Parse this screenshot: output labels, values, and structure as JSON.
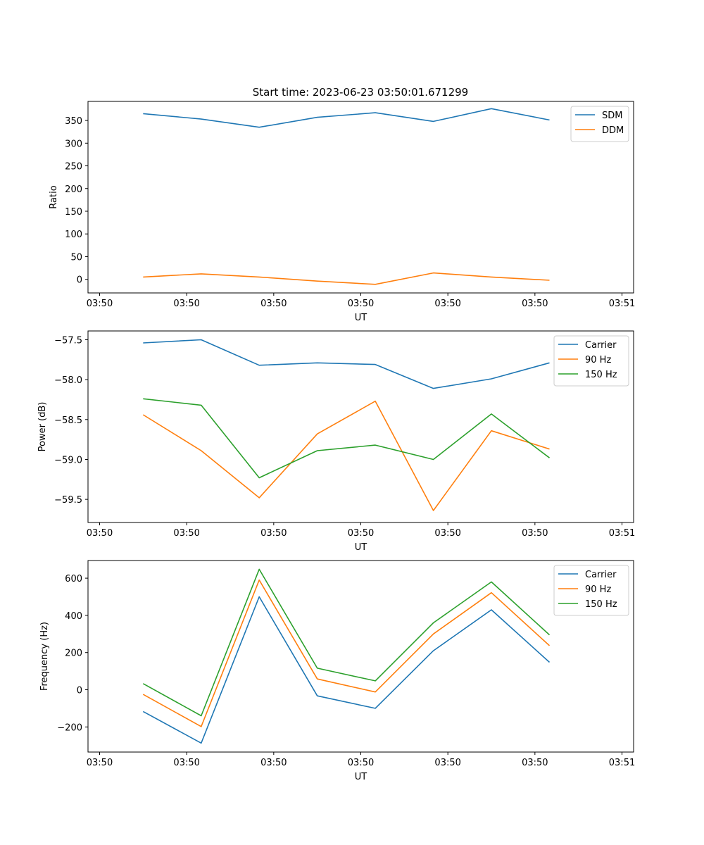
{
  "figure_title": "Start time: 2023-06-23 03:50:01.671299",
  "chart_data": [
    {
      "type": "line",
      "title": "Start time: 2023-06-23 03:50:01.671299",
      "xlabel": "UT",
      "ylabel": "Ratio",
      "x_ticks": [
        "03:50",
        "03:50",
        "03:50",
        "03:50",
        "03:50",
        "03:50",
        "03:51"
      ],
      "y_ticks": [
        "0",
        "50",
        "100",
        "150",
        "200",
        "250",
        "300",
        "350"
      ],
      "xlim": [
        -0.2,
        9.2
      ],
      "ylim": [
        -30,
        392
      ],
      "grid": false,
      "legend_position": "top-right",
      "x": [
        0.75,
        1.75,
        2.75,
        3.75,
        4.75,
        5.75,
        6.75,
        7.75
      ],
      "series": [
        {
          "name": "SDM",
          "color": "#1f77b4",
          "values": [
            365,
            353,
            335,
            357,
            367,
            348,
            376,
            351
          ]
        },
        {
          "name": "DDM",
          "color": "#ff7f0e",
          "values": [
            5,
            12,
            5,
            -4,
            -11,
            14,
            5,
            -2
          ]
        }
      ]
    },
    {
      "type": "line",
      "xlabel": "UT",
      "ylabel": "Power (dB)",
      "x_ticks": [
        "03:50",
        "03:50",
        "03:50",
        "03:50",
        "03:50",
        "03:50",
        "03:51"
      ],
      "y_ticks": [
        "−57.5",
        "−58.0",
        "−58.5",
        "−59.0",
        "−59.5"
      ],
      "xlim": [
        -0.2,
        9.2
      ],
      "ylim": [
        -59.79,
        -57.39
      ],
      "grid": false,
      "legend_position": "top-right",
      "x": [
        0.75,
        1.75,
        2.75,
        3.75,
        4.75,
        5.75,
        6.75,
        7.75
      ],
      "series": [
        {
          "name": "Carrier",
          "color": "#1f77b4",
          "values": [
            -57.54,
            -57.5,
            -57.82,
            -57.79,
            -57.81,
            -58.11,
            -57.99,
            -57.79
          ]
        },
        {
          "name": "90 Hz",
          "color": "#ff7f0e",
          "values": [
            -58.44,
            -58.89,
            -59.48,
            -58.68,
            -58.27,
            -59.64,
            -58.64,
            -58.87
          ]
        },
        {
          "name": "150 Hz",
          "color": "#2ca02c",
          "values": [
            -58.24,
            -58.32,
            -59.23,
            -58.89,
            -58.82,
            -59.0,
            -58.43,
            -58.98
          ]
        }
      ]
    },
    {
      "type": "line",
      "xlabel": "UT",
      "ylabel": "Frequency (Hz)",
      "x_ticks": [
        "03:50",
        "03:50",
        "03:50",
        "03:50",
        "03:50",
        "03:50",
        "03:51"
      ],
      "y_ticks": [
        "−200",
        "0",
        "200",
        "400",
        "600"
      ],
      "xlim": [
        -0.2,
        9.2
      ],
      "ylim": [
        -335,
        695
      ],
      "grid": false,
      "legend_position": "top-right",
      "x": [
        0.75,
        1.75,
        2.75,
        3.75,
        4.75,
        5.75,
        6.75,
        7.75
      ],
      "series": [
        {
          "name": "Carrier",
          "color": "#1f77b4",
          "values": [
            -117,
            -287,
            500,
            -33,
            -100,
            210,
            430,
            148
          ]
        },
        {
          "name": "90 Hz",
          "color": "#ff7f0e",
          "values": [
            -25,
            -198,
            590,
            58,
            -12,
            300,
            522,
            237
          ]
        },
        {
          "name": "150 Hz",
          "color": "#2ca02c",
          "values": [
            33,
            -140,
            648,
            116,
            48,
            360,
            580,
            295
          ]
        }
      ]
    }
  ]
}
